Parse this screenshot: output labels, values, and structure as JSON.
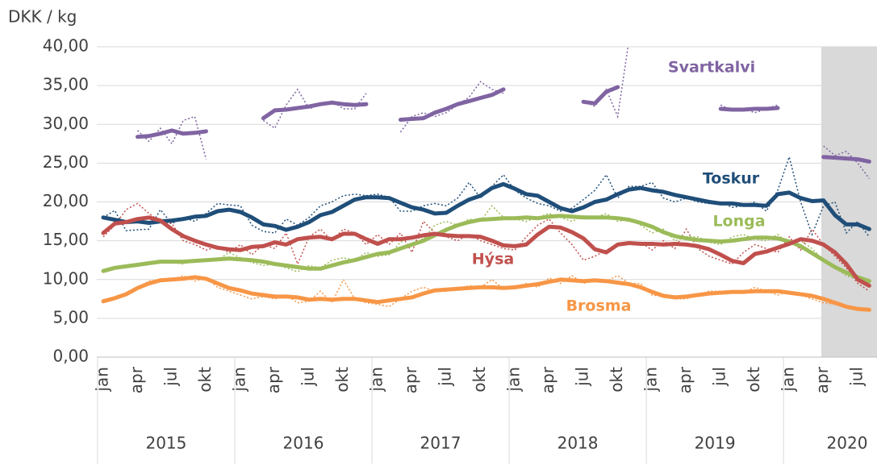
{
  "chart_data": {
    "type": "line",
    "y_axis_label": "DKK / kg",
    "categories": [
      "jan",
      null,
      null,
      "apr",
      null,
      null,
      "jul",
      null,
      null,
      "okt",
      null,
      null,
      "jan",
      null,
      null,
      "apr",
      null,
      null,
      "jul",
      null,
      null,
      "okt",
      null,
      null,
      "jan",
      null,
      null,
      "apr",
      null,
      null,
      "jul",
      null,
      null,
      "okt",
      null,
      null,
      "jan",
      null,
      null,
      "apr",
      null,
      null,
      "jul",
      null,
      null,
      "okt",
      null,
      null,
      "jan",
      null,
      null,
      "apr",
      null,
      null,
      "jul",
      null,
      null,
      "okt",
      null,
      null,
      "jan",
      null,
      null,
      "apr",
      null,
      null,
      "jul",
      null
    ],
    "year_groups": [
      "2015",
      "2016",
      "2017",
      "2018",
      "2019",
      "2020"
    ],
    "ylim": [
      0,
      40
    ],
    "yticks": [
      {
        "value": 0,
        "label": "0,00"
      },
      {
        "value": 5,
        "label": "5,00"
      },
      {
        "value": 10,
        "label": "10,00"
      },
      {
        "value": 15,
        "label": "15,00"
      },
      {
        "value": 20,
        "label": "20,00"
      },
      {
        "value": 25,
        "label": "25,00"
      },
      {
        "value": 30,
        "label": "30,00"
      },
      {
        "value": 35,
        "label": "35,00"
      },
      {
        "value": 40,
        "label": "40,00"
      }
    ],
    "grid": true,
    "series": [
      {
        "name": "Svartkalvi",
        "color": "#8064a2",
        "values": [
          null,
          null,
          null,
          28.4,
          28.5,
          28.8,
          29.2,
          28.8,
          28.9,
          29.1,
          null,
          null,
          null,
          null,
          30.8,
          31.8,
          31.9,
          32.1,
          32.3,
          32.6,
          32.8,
          32.6,
          32.5,
          32.6,
          null,
          null,
          30.6,
          30.7,
          30.8,
          31.5,
          32.0,
          32.6,
          33.0,
          33.4,
          33.8,
          34.5,
          null,
          null,
          null,
          null,
          null,
          null,
          32.9,
          32.7,
          34.2,
          34.8,
          null,
          null,
          null,
          null,
          null,
          null,
          null,
          null,
          32.0,
          31.9,
          31.9,
          32.0,
          32.0,
          32.1,
          null,
          null,
          null,
          25.8,
          25.7,
          25.6,
          25.5,
          25.2
        ],
        "monthly": [
          null,
          null,
          null,
          29.2,
          27.8,
          29.5,
          27.5,
          30.5,
          31.0,
          25.5,
          null,
          null,
          null,
          null,
          30.5,
          29.5,
          32.5,
          34.5,
          32.0,
          32.5,
          33.0,
          32.0,
          32.0,
          34.0,
          null,
          null,
          29.0,
          31.0,
          31.5,
          31.0,
          31.5,
          32.5,
          33.5,
          35.5,
          34.5,
          34.0,
          null,
          null,
          null,
          null,
          null,
          null,
          33.0,
          32.3,
          34.5,
          31.0,
          41.0,
          null,
          null,
          null,
          null,
          null,
          null,
          null,
          32.5,
          31.8,
          32.0,
          31.5,
          32.0,
          32.5,
          null,
          null,
          null,
          27.2,
          26.0,
          26.5,
          25.0,
          23.0
        ]
      },
      {
        "name": "Toskur",
        "color": "#1f4e79",
        "values": [
          18.0,
          17.7,
          17.4,
          17.5,
          17.3,
          17.5,
          17.6,
          17.8,
          18.1,
          18.2,
          18.8,
          19.0,
          18.7,
          18.0,
          17.1,
          16.9,
          16.4,
          16.8,
          17.4,
          18.3,
          18.7,
          19.5,
          20.3,
          20.6,
          20.6,
          20.5,
          19.9,
          19.3,
          19.0,
          18.5,
          18.6,
          19.5,
          20.3,
          20.8,
          21.8,
          22.3,
          21.7,
          21.0,
          20.8,
          20.0,
          19.2,
          18.8,
          19.3,
          20.0,
          20.3,
          21.0,
          21.6,
          21.8,
          21.5,
          21.3,
          20.9,
          20.6,
          20.3,
          20.0,
          19.8,
          19.8,
          19.6,
          19.6,
          19.5,
          21.0,
          21.2,
          20.5,
          20.1,
          20.2,
          18.3,
          17.1,
          17.1,
          16.5
        ],
        "monthly": [
          18.0,
          18.9,
          16.3,
          16.4,
          16.5,
          19.0,
          17.2,
          18.0,
          17.5,
          18.5,
          19.8,
          19.6,
          19.5,
          17.0,
          16.2,
          16.0,
          17.8,
          17.0,
          18.0,
          19.5,
          20.0,
          20.8,
          21.0,
          20.8,
          21.0,
          20.6,
          18.8,
          18.8,
          19.5,
          19.8,
          19.5,
          20.5,
          22.5,
          20.5,
          22.0,
          23.5,
          21.5,
          20.5,
          19.8,
          19.5,
          18.8,
          19.2,
          20.3,
          21.5,
          23.5,
          20.5,
          22.0,
          22.0,
          22.5,
          20.5,
          20.0,
          20.5,
          20.0,
          19.8,
          20.0,
          19.3,
          19.5,
          20.0,
          18.8,
          21.5,
          25.8,
          20.0,
          15.8,
          19.5,
          20.0,
          16.0,
          17.5,
          15.5
        ]
      },
      {
        "name": "Longa",
        "color": "#9bbb59",
        "values": [
          11.1,
          11.5,
          11.7,
          11.9,
          12.1,
          12.3,
          12.3,
          12.3,
          12.4,
          12.5,
          12.6,
          12.7,
          12.6,
          12.5,
          12.3,
          12.0,
          11.8,
          11.6,
          11.4,
          11.4,
          11.8,
          12.2,
          12.5,
          12.9,
          13.3,
          13.5,
          14.0,
          14.5,
          15.0,
          15.7,
          16.4,
          17.0,
          17.4,
          17.7,
          17.8,
          17.9,
          17.9,
          18.0,
          17.9,
          18.1,
          18.2,
          18.1,
          18.0,
          18.0,
          18.0,
          17.9,
          17.7,
          17.3,
          16.8,
          16.1,
          15.6,
          15.3,
          15.1,
          15.0,
          14.9,
          15.0,
          15.2,
          15.4,
          15.4,
          15.3,
          14.9,
          14.3,
          13.4,
          12.5,
          11.6,
          10.9,
          10.3,
          9.8
        ],
        "monthly": [
          11.2,
          11.5,
          11.8,
          11.8,
          12.2,
          12.5,
          12.2,
          12.0,
          12.5,
          12.6,
          12.5,
          13.5,
          12.8,
          12.2,
          11.8,
          12.0,
          11.5,
          11.0,
          11.8,
          11.5,
          12.5,
          12.8,
          12.5,
          13.5,
          13.0,
          13.2,
          14.8,
          15.5,
          15.2,
          17.0,
          17.5,
          17.0,
          17.8,
          17.5,
          19.5,
          18.0,
          17.8,
          17.5,
          18.0,
          18.5,
          18.0,
          17.5,
          18.2,
          18.0,
          18.5,
          17.5,
          17.8,
          17.0,
          16.0,
          16.5,
          15.0,
          15.5,
          15.5,
          14.8,
          14.5,
          15.5,
          15.8,
          15.2,
          15.0,
          15.8,
          14.5,
          15.0,
          14.0,
          12.5,
          11.5,
          10.5,
          10.0,
          9.5
        ]
      },
      {
        "name": "Hýsa",
        "color": "#c0504d",
        "values": [
          16.0,
          17.2,
          17.4,
          17.8,
          18.0,
          17.6,
          16.5,
          15.6,
          15.0,
          14.5,
          14.1,
          13.9,
          13.8,
          14.2,
          14.3,
          14.8,
          14.5,
          15.2,
          15.4,
          15.5,
          15.2,
          15.9,
          15.9,
          15.2,
          14.6,
          15.2,
          15.2,
          15.4,
          15.7,
          15.9,
          15.7,
          15.6,
          15.6,
          15.5,
          15.0,
          14.4,
          14.3,
          14.5,
          15.8,
          16.8,
          16.7,
          16.1,
          15.3,
          13.9,
          13.5,
          14.5,
          14.7,
          14.6,
          14.6,
          14.5,
          14.6,
          14.5,
          14.3,
          13.9,
          13.2,
          12.4,
          12.1,
          13.3,
          13.6,
          14.1,
          14.6,
          15.2,
          15.0,
          14.5,
          13.5,
          12.0,
          10.0,
          9.2
        ],
        "monthly": [
          15.5,
          17.0,
          19.0,
          19.8,
          18.5,
          17.5,
          17.2,
          15.0,
          14.5,
          13.8,
          14.2,
          13.5,
          14.5,
          13.2,
          14.5,
          14.0,
          16.0,
          12.0,
          15.5,
          16.5,
          15.0,
          16.5,
          16.0,
          14.5,
          15.8,
          14.5,
          16.0,
          13.5,
          17.5,
          16.0,
          15.5,
          15.0,
          15.8,
          15.0,
          14.5,
          14.0,
          13.8,
          15.5,
          17.0,
          17.8,
          16.0,
          14.5,
          12.5,
          13.0,
          13.8,
          14.5,
          14.8,
          14.8,
          13.8,
          15.0,
          14.0,
          16.5,
          14.0,
          13.0,
          12.5,
          12.0,
          13.5,
          14.5,
          14.0,
          13.5,
          15.5,
          13.8,
          16.5,
          14.5,
          13.0,
          11.5,
          9.5,
          8.5
        ]
      },
      {
        "name": "Brosma",
        "color": "#f79646",
        "values": [
          7.2,
          7.6,
          8.1,
          8.9,
          9.5,
          9.9,
          10.0,
          10.1,
          10.3,
          10.1,
          9.5,
          8.9,
          8.6,
          8.2,
          8.0,
          7.8,
          7.8,
          7.7,
          7.4,
          7.5,
          7.4,
          7.5,
          7.5,
          7.3,
          7.1,
          7.3,
          7.5,
          7.7,
          8.2,
          8.6,
          8.7,
          8.8,
          8.9,
          9.0,
          9.0,
          8.9,
          9.0,
          9.2,
          9.4,
          9.7,
          10.0,
          9.9,
          9.8,
          9.9,
          9.8,
          9.6,
          9.4,
          9.0,
          8.4,
          7.9,
          7.7,
          7.8,
          8.0,
          8.2,
          8.3,
          8.4,
          8.4,
          8.5,
          8.5,
          8.5,
          8.3,
          8.1,
          7.9,
          7.5,
          7.0,
          6.5,
          6.2,
          6.1
        ],
        "monthly": [
          7.0,
          7.5,
          8.2,
          9.0,
          9.8,
          10.0,
          10.0,
          10.5,
          9.8,
          10.2,
          9.0,
          8.5,
          8.0,
          7.5,
          7.8,
          7.5,
          8.0,
          7.0,
          7.2,
          8.5,
          7.0,
          10.0,
          7.5,
          7.0,
          6.8,
          6.5,
          7.5,
          8.5,
          9.0,
          8.5,
          8.5,
          8.8,
          9.2,
          9.0,
          10.0,
          8.8,
          9.0,
          9.5,
          9.0,
          10.2,
          9.5,
          10.5,
          9.5,
          10.0,
          9.8,
          10.5,
          9.5,
          9.5,
          8.0,
          7.8,
          7.5,
          7.5,
          8.0,
          8.5,
          8.5,
          8.5,
          8.3,
          9.0,
          8.5,
          8.0,
          8.5,
          8.0,
          7.5,
          7.0,
          6.8,
          6.5,
          6.2,
          6.0
        ]
      }
    ]
  }
}
